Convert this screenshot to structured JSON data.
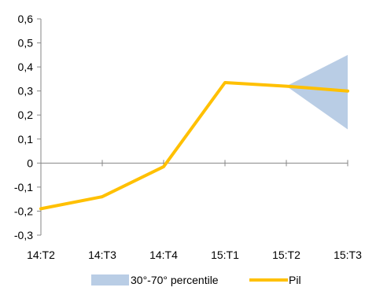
{
  "chart_data": {
    "type": "line",
    "categories": [
      "14:T2",
      "14:T3",
      "14:T4",
      "15:T1",
      "15:T2",
      "15:T3"
    ],
    "series": [
      {
        "name": "Pil",
        "values": [
          -0.19,
          -0.14,
          -0.015,
          0.335,
          0.32,
          0.3
        ],
        "color": "#FFC000"
      }
    ],
    "band": {
      "name": "30°-70° percentile",
      "from_category": "15:T2",
      "to_category": "15:T3",
      "lower": [
        0.32,
        0.14
      ],
      "upper": [
        0.32,
        0.45
      ],
      "color": "#B9CDE5"
    },
    "ylim": [
      -0.3,
      0.6
    ],
    "yticks": [
      -0.3,
      -0.2,
      -0.1,
      0,
      0.1,
      0.2,
      0.3,
      0.4,
      0.5,
      0.6
    ],
    "ytick_labels": [
      "-0,3",
      "-0,2",
      "-0,1",
      "0",
      "0,1",
      "0,2",
      "0,3",
      "0,4",
      "0,5",
      "0,6"
    ],
    "title": "",
    "xlabel": "",
    "ylabel": "",
    "grid": false,
    "legend_position": "bottom",
    "legend": [
      {
        "label": "30°-70° percentile",
        "kind": "area",
        "color": "#B9CDE5"
      },
      {
        "label": "Pil",
        "kind": "line",
        "color": "#FFC000"
      }
    ]
  }
}
